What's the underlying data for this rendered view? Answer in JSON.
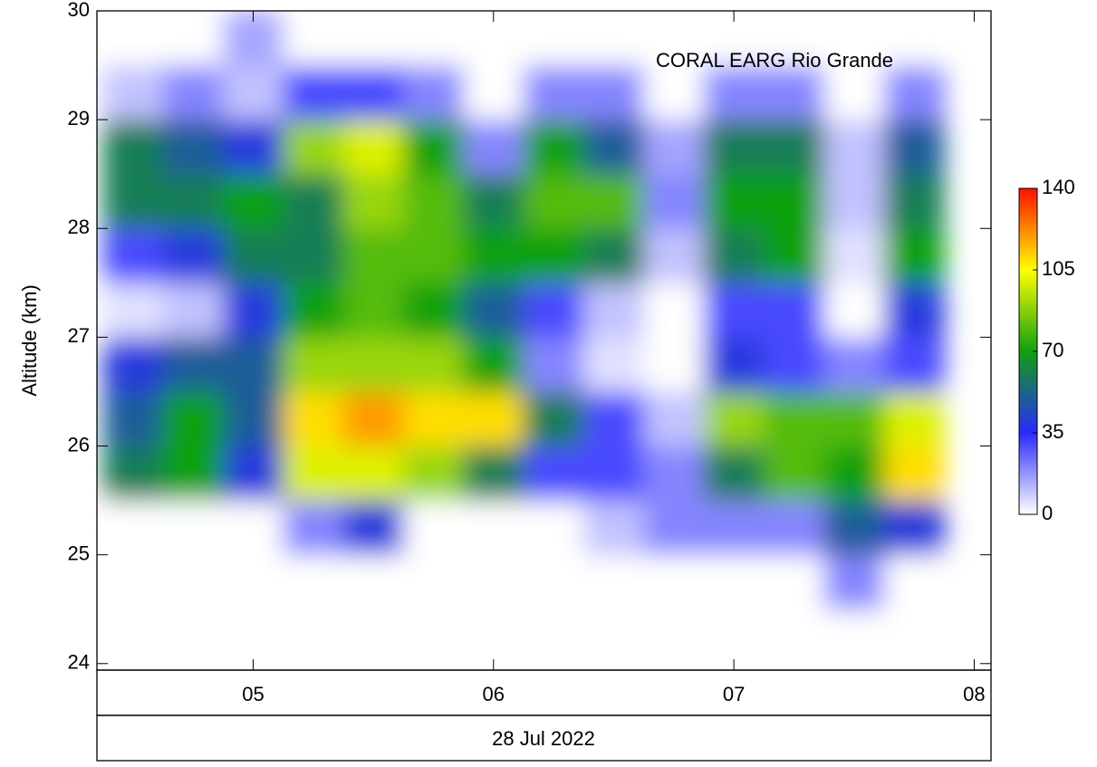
{
  "chart_data": {
    "type": "heatmap",
    "annotation": "CORAL EARG Rio Grande",
    "y_label": "Altitude (km)",
    "x_label": "28 Jul 2022",
    "x": [
      4.5,
      4.75,
      5.0,
      5.25,
      5.5,
      5.75,
      6.0,
      6.25,
      6.5,
      6.75,
      7.0,
      7.25,
      7.5,
      7.75
    ],
    "y": [
      24.25,
      24.75,
      25.25,
      25.75,
      26.25,
      26.75,
      27.25,
      27.75,
      28.25,
      28.75,
      29.25,
      29.75
    ],
    "z": [
      [
        0,
        0,
        0,
        0,
        0,
        0,
        0,
        0,
        0,
        0,
        0,
        0,
        0,
        0
      ],
      [
        0,
        0,
        0,
        0,
        0,
        0,
        0,
        0,
        0,
        0,
        0,
        0,
        20,
        0
      ],
      [
        0,
        0,
        0,
        20,
        40,
        0,
        0,
        0,
        10,
        20,
        20,
        20,
        50,
        40
      ],
      [
        60,
        70,
        40,
        100,
        100,
        90,
        60,
        30,
        30,
        20,
        60,
        80,
        70,
        110
      ],
      [
        50,
        70,
        50,
        110,
        120,
        110,
        110,
        60,
        30,
        10,
        90,
        80,
        80,
        100
      ],
      [
        40,
        50,
        50,
        90,
        90,
        90,
        70,
        20,
        5,
        0,
        40,
        30,
        20,
        30
      ],
      [
        5,
        10,
        40,
        70,
        80,
        70,
        50,
        30,
        10,
        0,
        30,
        30,
        0,
        40
      ],
      [
        30,
        40,
        60,
        60,
        80,
        80,
        70,
        70,
        60,
        10,
        60,
        70,
        5,
        70
      ],
      [
        60,
        60,
        70,
        60,
        90,
        80,
        60,
        80,
        80,
        20,
        70,
        70,
        10,
        60
      ],
      [
        60,
        50,
        40,
        90,
        100,
        70,
        20,
        70,
        50,
        15,
        60,
        60,
        10,
        50
      ],
      [
        10,
        20,
        10,
        30,
        30,
        20,
        0,
        20,
        20,
        0,
        20,
        20,
        0,
        20
      ],
      [
        0,
        0,
        15,
        0,
        0,
        0,
        0,
        0,
        0,
        0,
        0,
        0,
        0,
        0
      ]
    ],
    "xlim": [
      4.35,
      8.07
    ],
    "ylim": [
      23.94,
      30.0
    ],
    "xticks": [
      {
        "value": 5,
        "label": "05"
      },
      {
        "value": 6,
        "label": "06"
      },
      {
        "value": 7,
        "label": "07"
      },
      {
        "value": 8,
        "label": "08"
      }
    ],
    "yticks": [
      24,
      25,
      26,
      27,
      28,
      29,
      30
    ],
    "zlim": [
      0,
      140
    ],
    "zticks": [
      0,
      35,
      70,
      105,
      140
    ],
    "colors": [
      "#ffffff",
      "#2a2aff",
      "#10a010",
      "#ffff00",
      "#ff1000"
    ]
  }
}
